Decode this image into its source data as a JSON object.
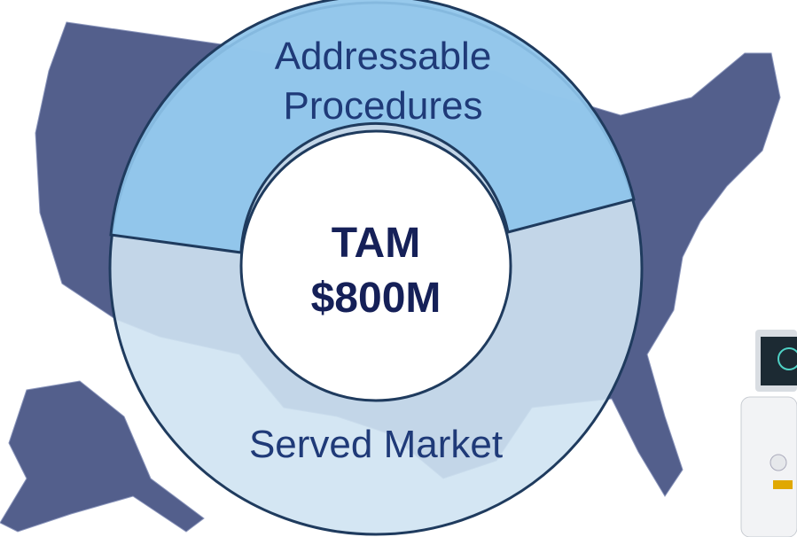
{
  "segments": [
    {
      "label_lines": [
        "Addressable",
        "Procedures"
      ]
    },
    {
      "label_lines": [
        "Served Market"
      ]
    }
  ],
  "center": {
    "line1": "TAM",
    "line2": "$800M"
  }
}
